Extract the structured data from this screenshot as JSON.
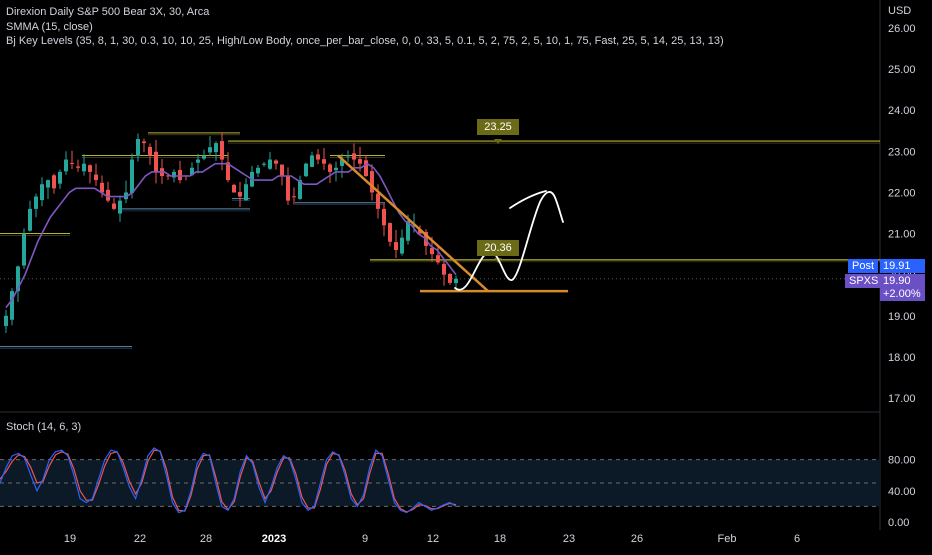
{
  "legend": {
    "symbol_line": "Direxion Daily S&P 500 Bear 3X, 30, Arca",
    "smma_line": "SMMA (15, close)",
    "keylevels_line": "Bj Key Levels (35, 8, 1, 30, 0.3, 10, 10, 25, High/Low Body, once_per_bar_close, 0, 0, 33, 5, 0.1, 5, 2, 75, 2, 5, 10, 1, 75, Fast, 25, 5, 14, 25, 13, 13)"
  },
  "currency": "USD",
  "price_scale": {
    "ticks": [
      "26.00",
      "25.00",
      "24.00",
      "23.00",
      "22.00",
      "21.00",
      "20.00",
      "19.00",
      "18.00",
      "17.00"
    ]
  },
  "stoch_scale": {
    "ticks": [
      "80.00",
      "40.00",
      "0.00"
    ]
  },
  "time_axis": {
    "labels": [
      "19",
      "22",
      "28",
      "2023",
      "9",
      "12",
      "18",
      "23",
      "26",
      "Feb",
      "6"
    ]
  },
  "tags": {
    "post_label": "Post",
    "post_price": "19.91",
    "symbol_label": "SPXS",
    "last_price": "19.90",
    "change_pct": "+2.00%"
  },
  "annotations": {
    "level_high": "23.25",
    "level_mid": "20.36"
  },
  "stoch_legend": "Stoch (14, 6, 3)",
  "colors": {
    "background": "#000000",
    "bull_candle": "#26a69a",
    "bear_candle": "#ef5350",
    "smma_line": "#7e57c2",
    "key_level": "#b8b13a",
    "key_level_blue": "#5b8fb9",
    "trendline": "#d68a2c",
    "stoch_k": "#2962ff",
    "stoch_d": "#ef5350",
    "post_tag": "#2962ff",
    "symbol_tag": "#6a4fc5",
    "badge": "#6b6a17"
  },
  "chart_data": {
    "type": "candlestick",
    "price_range": [
      16.6,
      26.3
    ],
    "smma_period": 15,
    "candles_close": [
      19.0,
      19.6,
      20.2,
      21.0,
      21.6,
      21.9,
      22.2,
      22.3,
      22.1,
      22.5,
      22.8,
      22.7,
      22.6,
      22.7,
      22.5,
      22.3,
      22.0,
      21.8,
      21.6,
      21.8,
      22.0,
      22.8,
      23.3,
      23.2,
      22.9,
      22.5,
      22.4,
      22.4,
      22.5,
      22.3,
      22.4,
      22.6,
      22.8,
      22.9,
      23.1,
      23.2,
      22.8,
      22.3,
      22.0,
      21.9,
      22.2,
      22.5,
      22.6,
      22.7,
      22.8,
      22.7,
      22.4,
      21.8,
      21.9,
      22.3,
      22.7,
      22.9,
      22.8,
      22.7,
      22.5,
      22.6,
      22.8,
      22.9,
      22.8,
      22.7,
      22.4,
      22.0,
      21.6,
      21.2,
      20.8,
      20.6,
      20.9,
      21.3,
      21.2,
      21.0,
      20.7,
      20.5,
      20.3,
      20.0,
      19.8,
      19.9
    ],
    "smma": [
      19.2,
      19.4,
      19.7,
      20.0,
      20.4,
      20.8,
      21.1,
      21.4,
      21.6,
      21.8,
      22.0,
      22.1,
      22.1,
      22.1,
      22.1,
      22.0,
      21.9,
      21.9,
      21.9,
      21.9,
      22.0,
      22.2,
      22.4,
      22.5,
      22.5,
      22.5,
      22.4,
      22.4,
      22.4,
      22.4,
      22.5,
      22.5,
      22.6,
      22.7,
      22.7,
      22.7,
      22.6,
      22.5,
      22.4,
      22.3,
      22.3,
      22.3,
      22.3,
      22.4,
      22.4,
      22.4,
      22.3,
      22.2,
      22.2,
      22.2,
      22.3,
      22.4,
      22.5,
      22.5,
      22.5,
      22.6,
      22.6,
      22.7,
      22.6,
      22.4,
      22.1,
      21.8,
      21.5,
      21.3,
      21.2,
      21.0,
      20.9,
      20.7,
      20.6,
      20.4,
      20.2,
      20.0
    ],
    "key_levels": [
      {
        "price": 23.25,
        "color": "yellow"
      },
      {
        "price": 20.36,
        "color": "yellow"
      },
      {
        "price": 19.9,
        "color": "gray-dotted"
      },
      {
        "price": 21.0,
        "color": "yellow"
      },
      {
        "price": 23.45,
        "color": "yellow"
      },
      {
        "price": 22.9,
        "color": "yellow"
      },
      {
        "price": 21.8,
        "color": "blue"
      },
      {
        "price": 21.6,
        "color": "blue"
      },
      {
        "price": 18.3,
        "color": "blue"
      }
    ],
    "trendline_start": 22.9,
    "trendline_end": 19.6,
    "support_level": 19.6,
    "stoch_range": [
      0,
      100
    ],
    "stoch_levels": [
      80,
      50,
      20
    ],
    "stoch_k": [
      50,
      70,
      85,
      88,
      82,
      60,
      40,
      55,
      80,
      90,
      92,
      85,
      60,
      30,
      25,
      30,
      55,
      80,
      92,
      90,
      70,
      45,
      30,
      55,
      85,
      95,
      90,
      60,
      25,
      12,
      15,
      40,
      75,
      88,
      85,
      50,
      20,
      15,
      30,
      65,
      85,
      75,
      45,
      25,
      45,
      70,
      85,
      80,
      55,
      25,
      15,
      20,
      50,
      80,
      90,
      85,
      60,
      30,
      20,
      35,
      70,
      92,
      85,
      55,
      25,
      15,
      12,
      18,
      25,
      20,
      15,
      18,
      22,
      25,
      20
    ],
    "stoch_d": [
      55,
      65,
      78,
      86,
      84,
      70,
      50,
      52,
      72,
      86,
      90,
      87,
      68,
      40,
      28,
      28,
      48,
      72,
      88,
      90,
      76,
      52,
      36,
      50,
      78,
      92,
      91,
      68,
      32,
      15,
      14,
      34,
      68,
      85,
      86,
      58,
      26,
      16,
      26,
      58,
      82,
      78,
      52,
      30,
      40,
      64,
      82,
      82,
      62,
      32,
      18,
      18,
      42,
      74,
      88,
      86,
      66,
      36,
      22,
      30,
      62,
      88,
      88,
      62,
      30,
      17,
      13,
      16,
      22,
      21,
      17,
      17,
      21,
      24,
      22
    ],
    "x_labels": [
      "19",
      "22",
      "28",
      "2023",
      "9",
      "12",
      "18",
      "23",
      "26",
      "Feb",
      "6"
    ]
  }
}
